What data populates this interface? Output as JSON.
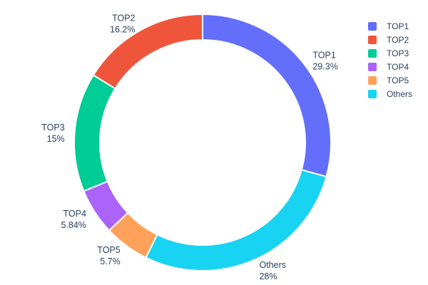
{
  "chart_data": {
    "type": "pie",
    "title": "",
    "labels": [
      "TOP1",
      "TOP2",
      "TOP3",
      "TOP4",
      "TOP5",
      "Others"
    ],
    "values": [
      29.3,
      16.2,
      15,
      5.84,
      5.7,
      28
    ],
    "percent_labels": [
      "29.3%",
      "16.2%",
      "15%",
      "5.84%",
      "5.7%",
      "28%"
    ],
    "colors": [
      "#636EFA",
      "#EF553B",
      "#00CC96",
      "#AB63FA",
      "#FFA15A",
      "#19D3F3"
    ],
    "hole": 0.8,
    "direction": "clockwise",
    "start_angle_deg": 0,
    "display_order": [
      0,
      5,
      4,
      3,
      2,
      1
    ],
    "label_position": "outside",
    "legend_position": "top-right",
    "text_color": "#2a3f5f",
    "background_color": "#ffffff"
  }
}
